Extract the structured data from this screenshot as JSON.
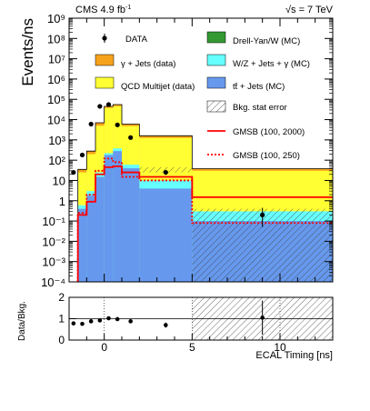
{
  "chart_data": [
    {
      "type": "bar",
      "panel": "main",
      "header_left": "CMS 4.9 fb",
      "header_left_sup": "-1",
      "header_right": "√s = 7 TeV",
      "ylabel": "Events/ns",
      "yscale": "log",
      "ylim": [
        0.0001,
        1000000000
      ],
      "xlim": [
        -2,
        13
      ],
      "y_tick_labels": [
        "10⁻⁴",
        "10⁻³",
        "10⁻²",
        "10⁻¹",
        "1",
        "10",
        "10²",
        "10³",
        "10⁴",
        "10⁵",
        "10⁶",
        "10⁷",
        "10⁸",
        "10⁹"
      ],
      "bin_edges": [
        -1.5,
        -1,
        -0.5,
        0,
        0.5,
        1,
        2,
        5,
        13
      ],
      "series": [
        {
          "name": "γ + Jets (data)",
          "color": "#f7a21b",
          "top": [
            35,
            280,
            7000,
            45000,
            55000,
            6000,
            1600,
            38,
            0.045
          ]
        },
        {
          "name": "QCD Multijet (data)",
          "color": "#ffff33",
          "top": [
            25,
            200,
            5000,
            38000,
            46000,
            4800,
            1250,
            30,
            0.04
          ]
        },
        {
          "name": "W/Z + Jets + γ (MC)",
          "color": "#66ffff",
          "top": [
            0.6,
            3,
            25,
            220,
            380,
            60,
            10,
            0.3,
            0.04
          ]
        },
        {
          "name": "tt̄ + Jets (MC)",
          "color": "#6699ee",
          "top": [
            0.4,
            1.8,
            15,
            180,
            280,
            40,
            4,
            0.1,
            0.0001
          ]
        },
        {
          "name": "Drell-Yan/W (MC)",
          "color": "#339933",
          "top": [
            0,
            0,
            0,
            0,
            0,
            0,
            0,
            0,
            0
          ]
        }
      ],
      "data": {
        "name": "DATA",
        "x": [
          -1.75,
          -1.25,
          -0.75,
          -0.25,
          0.25,
          0.75,
          1.5,
          3.5,
          9
        ],
        "y": [
          25,
          180,
          6000,
          45000,
          55000,
          5500,
          1300,
          25,
          0.2
        ],
        "yerr_log_up": [
          0.08,
          0.03,
          0.01,
          0.004,
          0.003,
          0.01,
          0.02,
          0.1,
          0.35
        ],
        "yerr_log_down": [
          0.1,
          0.04,
          0.01,
          0.004,
          0.003,
          0.01,
          0.02,
          0.12,
          0.6
        ]
      },
      "gmsb_2000": {
        "name": "GMSB (100, 2000)",
        "color": "#ff0000",
        "values": [
          0.2,
          0.9,
          20,
          45,
          50,
          25,
          15,
          1.5,
          0.005
        ]
      },
      "gmsb_250": {
        "name": "GMSB (100, 250)",
        "color": "#ff0000",
        "values": [
          0.25,
          2,
          30,
          120,
          80,
          15,
          10,
          0.08,
          0.0001
        ]
      },
      "bkg_error_label": "Bkg. stat error",
      "legend_labels": [
        "DATA",
        "γ + Jets (data)",
        "QCD Multijet (data)",
        "tt̄ + Jets (MC)",
        "Drell-Yan/W (MC)",
        "W/Z + Jets + γ (MC)",
        "Bkg. stat error",
        "GMSB (100, 2000)",
        "GMSB (100, 250)"
      ]
    },
    {
      "type": "scatter",
      "panel": "ratio",
      "ylabel": "Data/Bkg.",
      "xlabel": "ECAL Timing [ns]",
      "ylim": [
        0,
        2
      ],
      "y_tick_labels": [
        "0",
        "1",
        "2"
      ],
      "xlim": [
        -2,
        13
      ],
      "x_tick_labels": [
        "0",
        "5",
        "10"
      ],
      "x_tick_values": [
        0,
        5,
        10
      ],
      "x": [
        -1.75,
        -1.25,
        -0.75,
        -0.25,
        0.25,
        0.75,
        1.5,
        3.5,
        9
      ],
      "y": [
        0.78,
        0.76,
        0.88,
        0.92,
        1.02,
        0.98,
        0.88,
        0.7,
        1.05
      ],
      "yerr": [
        0.08,
        0.04,
        0.02,
        0.01,
        0.01,
        0.02,
        0.03,
        0.12,
        0.8
      ]
    }
  ]
}
